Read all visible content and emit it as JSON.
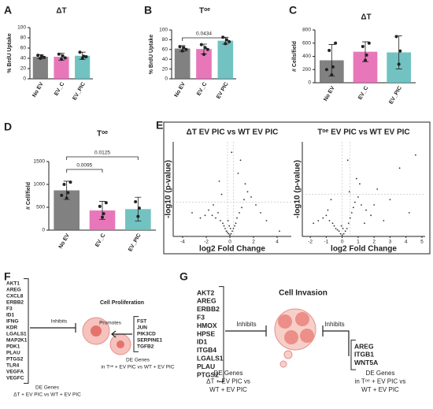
{
  "chart_data": [
    {
      "type": "bar",
      "panel_label": "A",
      "title": "ΔT",
      "ylabel": "% BrdU Uptake",
      "categories": [
        "No EV",
        "EV_C",
        "EV_PIC"
      ],
      "values": [
        43,
        43,
        45
      ],
      "errors": [
        4,
        7,
        7
      ],
      "points": [
        [
          40,
          44,
          46,
          42
        ],
        [
          38,
          45,
          48,
          41
        ],
        [
          40,
          44,
          52,
          43
        ]
      ],
      "colors": [
        "#6b6b6b",
        "#e45fae",
        "#5bb7b7"
      ],
      "ylim": [
        0,
        100
      ],
      "yticks": [
        0,
        20,
        40,
        60,
        80,
        100
      ]
    },
    {
      "type": "bar",
      "panel_label": "B",
      "title": "Tᵒᵉ",
      "ylabel": "% BrdU Uptake",
      "categories": [
        "No EV",
        "EV_C",
        "EV PIC"
      ],
      "values": [
        62,
        61,
        78
      ],
      "errors": [
        6,
        10,
        7
      ],
      "points": [
        [
          57,
          64,
          66,
          60
        ],
        [
          50,
          64,
          70,
          60
        ],
        [
          72,
          80,
          85,
          76
        ]
      ],
      "colors": [
        "#6b6b6b",
        "#e45fae",
        "#5bb7b7"
      ],
      "ylim": [
        0,
        100
      ],
      "yticks": [
        0,
        20,
        40,
        60,
        80,
        100
      ],
      "comparisons": [
        {
          "label": 0.0434,
          "between": [
            "No EV",
            "EV PIC"
          ]
        }
      ]
    },
    {
      "type": "bar",
      "panel_label": "C",
      "title": "ΔT",
      "ylabel": "# Cells/field",
      "categories": [
        "No EV",
        "EV_C",
        "EV_PIC"
      ],
      "values": [
        340,
        470,
        460
      ],
      "errors": [
        240,
        150,
        250
      ],
      "points": [
        [
          120,
          240,
          490,
          600,
          200
        ],
        [
          340,
          420,
          550,
          600
        ],
        [
          280,
          480,
          700
        ]
      ],
      "colors": [
        "#6b6b6b",
        "#e45fae",
        "#5bb7b7"
      ],
      "ylim": [
        0,
        800
      ],
      "yticks": [
        0,
        200,
        400,
        600,
        800
      ]
    },
    {
      "type": "bar",
      "panel_label": "D",
      "title": "Tᵒᵉ",
      "ylabel": "# Cell/field",
      "categories": [
        "No EV",
        "EV_C",
        "EV_PIC"
      ],
      "values": [
        870,
        430,
        460
      ],
      "errors": [
        200,
        200,
        260
      ],
      "points": [
        [
          700,
          820,
          1000,
          1050,
          760
        ],
        [
          280,
          360,
          520,
          600
        ],
        [
          300,
          480,
          620
        ]
      ],
      "colors": [
        "#6b6b6b",
        "#e45fae",
        "#5bb7b7"
      ],
      "ylim": [
        0,
        1500
      ],
      "yticks": [
        0,
        500,
        1000,
        1500
      ],
      "comparisons": [
        {
          "label": 0.0095,
          "between": [
            "No EV",
            "EV_C"
          ]
        },
        {
          "label": 0.0125,
          "between": [
            "No EV",
            "EV_PIC"
          ]
        }
      ]
    },
    {
      "type": "scatter",
      "panel_label": "E",
      "title": "ΔT EV PIC vs WT EV PIC",
      "xlabel": "log2 Fold Change",
      "ylabel": "-log10 (p-value)",
      "xlim": [
        -4.8,
        5.2
      ],
      "xticks": [
        -4,
        -2,
        0,
        2,
        4
      ],
      "ylim": [
        0,
        3.6
      ],
      "y_threshold": 1.3,
      "x_thresholds": [
        -0.2,
        0.3
      ],
      "color": "#333333",
      "x": [
        -3.2,
        -2.5,
        -2.1,
        -1.8,
        -1.5,
        -1.2,
        -1.0,
        -0.8,
        -0.6,
        -0.5,
        -0.4,
        -0.3,
        -0.2,
        -0.1,
        0,
        0.1,
        0.2,
        0.3,
        0.4,
        0.5,
        0.6,
        0.8,
        1.0,
        1.2,
        1.5,
        1.8,
        2.2,
        2.6,
        3.1,
        -0.9,
        -0.7,
        0.7,
        0.9,
        -1.4,
        1.3,
        0.15,
        -0.15,
        0.05,
        -0.05,
        4.2
      ],
      "y": [
        0.9,
        0.7,
        0.8,
        1.0,
        0.8,
        0.7,
        0.9,
        0.6,
        0.5,
        0.4,
        0.3,
        0.2,
        0.15,
        0.1,
        0.05,
        0.1,
        0.2,
        0.3,
        0.4,
        0.5,
        0.7,
        0.9,
        1.1,
        1.4,
        1.7,
        1.5,
        1.2,
        0.9,
        0.6,
        2.1,
        1.6,
        2.4,
        2.9,
        1.2,
        2.0,
        3.2,
        0.6,
        0.3,
        0.4,
        0.2
      ]
    },
    {
      "type": "scatter",
      "title": "Tᵒᵉ EV PIC vs WT EV PIC",
      "xlabel": "log2 Fold Change",
      "ylabel": "-log10 (p-value)",
      "xlim": [
        -2.5,
        5.2
      ],
      "xticks": [
        -2,
        -1,
        0,
        1,
        2,
        3,
        4,
        5
      ],
      "ylim": [
        0,
        3.6
      ],
      "y_threshold": 1.6,
      "x_thresholds": [
        0,
        0.5
      ],
      "color": "#333333",
      "x": [
        -1.8,
        -1.5,
        -1.2,
        -1.0,
        -0.8,
        -0.6,
        -0.5,
        -0.4,
        -0.3,
        -0.2,
        -0.1,
        0,
        0.1,
        0.2,
        0.3,
        0.4,
        0.5,
        0.6,
        0.7,
        0.8,
        1.0,
        1.2,
        1.5,
        1.8,
        2.2,
        2.6,
        3.0,
        3.6,
        4.2,
        -0.7,
        -0.9,
        0.9,
        1.1,
        0.35,
        0.45,
        2.0,
        1.4,
        -0.05,
        0.05,
        4.6
      ],
      "y": [
        0.5,
        0.6,
        0.7,
        0.8,
        0.6,
        0.5,
        0.4,
        0.3,
        0.25,
        0.2,
        0.1,
        0.05,
        0.1,
        0.2,
        0.3,
        0.5,
        0.7,
        0.9,
        1.1,
        1.3,
        1.5,
        1.2,
        1.0,
        0.8,
        1.8,
        0.6,
        1.4,
        2.6,
        0.9,
        1.4,
        1.0,
        2.2,
        2.0,
        2.9,
        1.7,
        1.2,
        0.5,
        0.4,
        0.3,
        3.1
      ]
    }
  ],
  "panel_f": {
    "panel_label": "F",
    "center": "Cell Proliferation",
    "left_arrow": "Inhibits",
    "right_arrow": "Promotes",
    "left_genes": [
      {
        "name": "AKT1",
        "color": "#2f6fd0"
      },
      {
        "name": "AREG",
        "color": "#2f6fd0"
      },
      {
        "name": "CXCL8",
        "color": "#2f6fd0"
      },
      {
        "name": "ERBB2",
        "color": "#2f6fd0"
      },
      {
        "name": "F3",
        "color": "#2f6fd0"
      },
      {
        "name": "ID1",
        "color": "#2f6fd0"
      },
      {
        "name": "IFNG",
        "color": "#d89a1e"
      },
      {
        "name": "KDR",
        "color": "#2f6fd0"
      },
      {
        "name": "LGALS1",
        "color": "#2f6fd0"
      },
      {
        "name": "MAP2K1",
        "color": "#2f6fd0"
      },
      {
        "name": "PDK1",
        "color": "#2f6fd0"
      },
      {
        "name": "PLAU",
        "color": "#2f6fd0"
      },
      {
        "name": "PTGS2",
        "color": "#2f6fd0"
      },
      {
        "name": "TLR4",
        "color": "#2f6fd0"
      },
      {
        "name": "VEGFA",
        "color": "#2f6fd0"
      },
      {
        "name": "VEGFC",
        "color": "#2f6fd0"
      }
    ],
    "right_genes": [
      {
        "name": "FST",
        "color": "#d08a1e"
      },
      {
        "name": "JUN",
        "color": "#d08a1e"
      },
      {
        "name": "PIK3CD",
        "color": "#d08a1e"
      },
      {
        "name": "SERPINE1",
        "color": "#d08a1e"
      },
      {
        "name": "TGFB2",
        "color": "#2f6fd0"
      }
    ],
    "left_caption": [
      "DE Genes",
      "ΔT + EV PIC vs WT + EV PIC"
    ],
    "right_caption": [
      "DE Genes",
      "in Tᵒᵉ + EV PIC vs WT + EV PIC"
    ]
  },
  "panel_g": {
    "panel_label": "G",
    "center": "Cell Invasion",
    "left_arrow": "Inhibits",
    "right_arrow": "Inhibits",
    "left_genes": [
      {
        "name": "AKT2",
        "color": "#2f6fd0"
      },
      {
        "name": "AREG",
        "color": "#2f6fd0"
      },
      {
        "name": "ERBB2",
        "color": "#2f6fd0"
      },
      {
        "name": "F3",
        "color": "#2f6fd0"
      },
      {
        "name": "HMOX",
        "color": "#2f6fd0"
      },
      {
        "name": "HPSE",
        "color": "#2f6fd0"
      },
      {
        "name": "ID1",
        "color": "#2f6fd0"
      },
      {
        "name": "ITGB4",
        "color": "#2f6fd0"
      },
      {
        "name": "LGALS1",
        "color": "#2f6fd0"
      },
      {
        "name": "PLAU",
        "color": "#2f6fd0"
      },
      {
        "name": "PTGS2",
        "color": "#2f6fd0"
      }
    ],
    "right_genes": [
      {
        "name": "AREG",
        "color": "#2f6fd0"
      },
      {
        "name": "ITGB1",
        "color": "#2f6fd0"
      },
      {
        "name": "WNT5A",
        "color": "#2f6fd0"
      }
    ],
    "left_caption": [
      "DE Genes",
      "ΔT + EV PIC vs",
      "WT + EV PIC"
    ],
    "right_caption": [
      "DE Genes",
      "in Tᵒᵉ + EV PIC vs",
      "WT + EV PIC"
    ]
  }
}
